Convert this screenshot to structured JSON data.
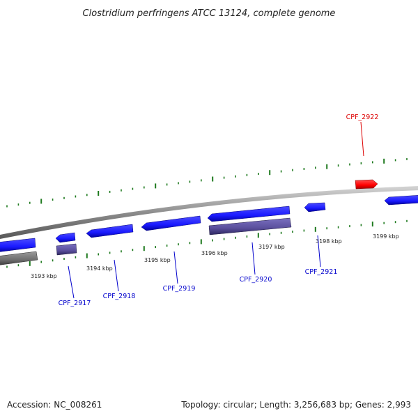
{
  "title": "Clostridium perfringens ATCC 13124, complete genome",
  "footer": {
    "accession": "Accession: NC_008261",
    "summary": "Topology: circular; Length: 3,256,683 bp; Genes: 2,993"
  },
  "colors": {
    "forward_gene": "#1a1aff",
    "forward_gene_dark": "#0000b0",
    "reverse_gene": "#5a4f9c",
    "reverse_gene_dark": "#2e2860",
    "highlight_gene": "#ff0000",
    "backbone": "#8c8c8c",
    "tick": "#1e7a1e",
    "label_blue": "#0000cc",
    "label_red": "#dd0000"
  },
  "kbp_labels": [
    "3193 kbp",
    "3194 kbp",
    "3195 kbp",
    "3196 kbp",
    "3197 kbp",
    "3198 kbp",
    "3199 kbp"
  ],
  "gene_labels": [
    {
      "id": "CPF_2917",
      "color": "blue"
    },
    {
      "id": "CPF_2918",
      "color": "blue"
    },
    {
      "id": "CPF_2919",
      "color": "blue"
    },
    {
      "id": "CPF_2920",
      "color": "blue"
    },
    {
      "id": "CPF_2921",
      "color": "blue"
    },
    {
      "id": "CPF_2922",
      "color": "red"
    }
  ]
}
